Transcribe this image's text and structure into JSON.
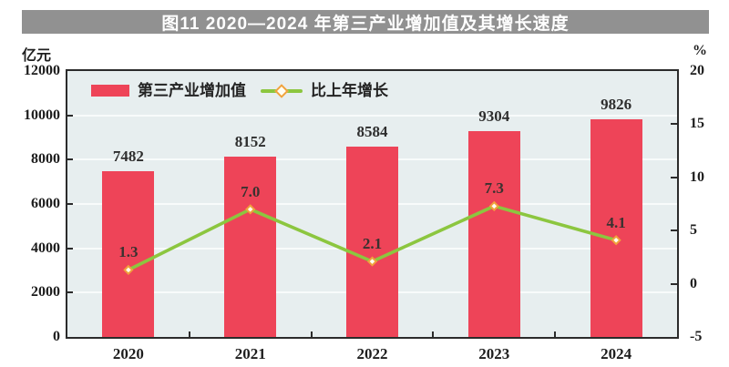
{
  "title": "图11 2020—2024 年第三产业增加值及其增长速度",
  "axes": {
    "left_unit": "亿元",
    "right_unit": "%"
  },
  "legend": {
    "bar_label": "第三产业增加值",
    "line_label": "比上年增长"
  },
  "colors": {
    "title_bar_bg": "#919191",
    "title_text": "#ffffff",
    "bar": "#ee4458",
    "line": "#8cc63f",
    "marker_fill": "#fffdf2",
    "marker_stroke": "#f0a23c",
    "plot_bg": "#e7eeef",
    "grid": "#f8fbfb",
    "border": "#2b2b2b",
    "text": "#1d1d1d"
  },
  "chart_data": {
    "type": "bar",
    "combo": "bar+line",
    "title": "图11 2020—2024 年第三产业增加值及其增长速度",
    "categories": [
      "2020",
      "2021",
      "2022",
      "2023",
      "2024"
    ],
    "series": [
      {
        "name": "第三产业增加值",
        "chart_type": "bar",
        "axis": "left",
        "unit": "亿元",
        "values": [
          7482,
          8152,
          8584,
          9304,
          9826
        ],
        "labels": [
          "7482",
          "8152",
          "8584",
          "9304",
          "9826"
        ],
        "color": "#ee4458"
      },
      {
        "name": "比上年增长",
        "chart_type": "line",
        "axis": "right",
        "unit": "%",
        "values": [
          1.3,
          7.0,
          2.1,
          7.3,
          4.1
        ],
        "labels": [
          "1.3",
          "7.0",
          "2.1",
          "7.3",
          "4.1"
        ],
        "color": "#8cc63f",
        "marker": "diamond"
      }
    ],
    "left_axis": {
      "unit": "亿元",
      "min": 0,
      "max": 12000,
      "step": 2000,
      "ticks": [
        "12000",
        "10000",
        "8000",
        "6000",
        "4000",
        "2000",
        "0"
      ]
    },
    "right_axis": {
      "unit": "%",
      "min": -5,
      "max": 20,
      "step": 5,
      "ticks": [
        "20",
        "15",
        "10",
        "5",
        "0",
        "-5"
      ]
    },
    "grid": true,
    "legend_position": "inside-top-left"
  }
}
